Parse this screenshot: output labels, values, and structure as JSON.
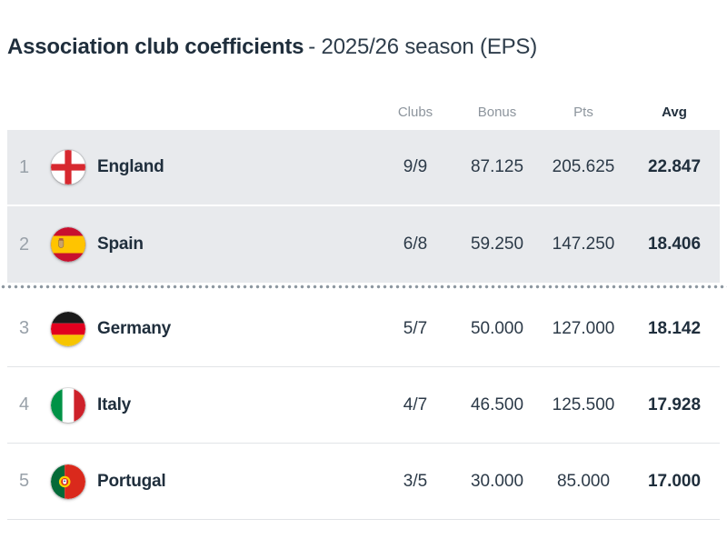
{
  "title": {
    "main": "Association club coefficients",
    "suffix": "- 2025/26 season (EPS)"
  },
  "table": {
    "headers": {
      "clubs": "Clubs",
      "bonus": "Bonus",
      "pts": "Pts",
      "avg": "Avg"
    },
    "rows": [
      {
        "rank": "1",
        "country": "England",
        "flag": "england",
        "clubs": "9/9",
        "bonus": "87.125",
        "pts": "205.625",
        "avg": "22.847",
        "highlighted": true,
        "divider_below": false
      },
      {
        "rank": "2",
        "country": "Spain",
        "flag": "spain",
        "clubs": "6/8",
        "bonus": "59.250",
        "pts": "147.250",
        "avg": "18.406",
        "highlighted": true,
        "divider_below": true
      },
      {
        "rank": "3",
        "country": "Germany",
        "flag": "germany",
        "clubs": "5/7",
        "bonus": "50.000",
        "pts": "127.000",
        "avg": "18.142",
        "highlighted": false,
        "divider_below": false
      },
      {
        "rank": "4",
        "country": "Italy",
        "flag": "italy",
        "clubs": "4/7",
        "bonus": "46.500",
        "pts": "125.500",
        "avg": "17.928",
        "highlighted": false,
        "divider_below": false
      },
      {
        "rank": "5",
        "country": "Portugal",
        "flag": "portugal",
        "clubs": "3/5",
        "bonus": "30.000",
        "pts": "85.000",
        "avg": "17.000",
        "highlighted": false,
        "divider_below": false
      }
    ]
  },
  "colors": {
    "text_dark": "#1f2e3c",
    "text_gray": "#939ca4",
    "highlight_row_bg": "#e8eaed",
    "row_border": "#e1e4e7",
    "divider_dots": "#8d97a0",
    "england_red": "#d7282f",
    "spain_red": "#c8102e",
    "spain_yellow": "#ffc400",
    "germany_black": "#1a1a1a",
    "germany_red": "#e1001f",
    "germany_gold": "#f6c500",
    "italy_green": "#009246",
    "italy_red": "#cd212a",
    "portugal_green": "#046a38",
    "portugal_red": "#da291c",
    "portugal_yellow": "#ffd200"
  }
}
